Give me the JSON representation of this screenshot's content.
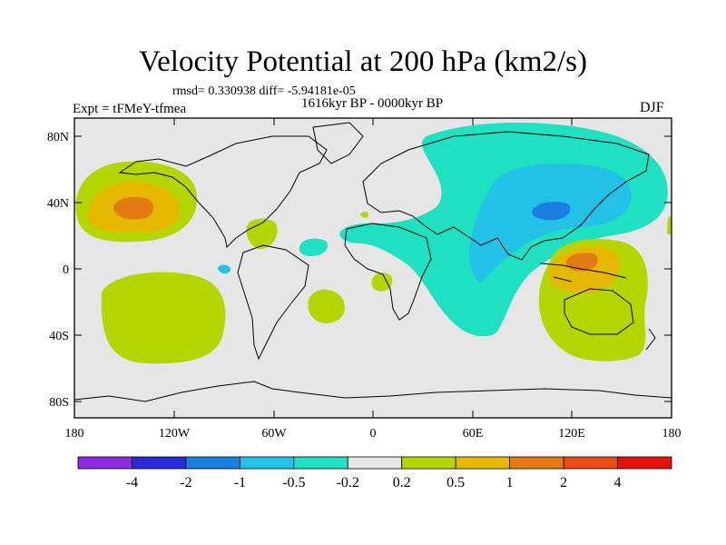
{
  "title": "Velocity Potential at 200 hPa (km2/s)",
  "stats": "rmsd= 0.330938 diff= -5.94181e-05",
  "period": "1616kyr BP - 0000kyr BP",
  "experiment": "Expt = tFMeY-tfmea",
  "season": "DJF",
  "lat_labels": [
    "80N",
    "40N",
    "0",
    "40S",
    "80S"
  ],
  "lon_labels": [
    "180",
    "120W",
    "60W",
    "0",
    "60E",
    "120E",
    "180"
  ],
  "colorbar": {
    "labels": [
      "-4",
      "-2",
      "-1",
      "-0.5",
      "-0.2",
      "0.2",
      "0.5",
      "1",
      "2",
      "4"
    ],
    "colors": [
      "#8a2be2",
      "#2a2ad8",
      "#1a7fe0",
      "#22c1e6",
      "#1fe0c0",
      "#e6e6e6",
      "#b5d500",
      "#e5b800",
      "#e37a14",
      "#e84a12",
      "#e61010"
    ]
  },
  "colors": {
    "background": "#e6e6e6",
    "coastline": "#000000"
  }
}
